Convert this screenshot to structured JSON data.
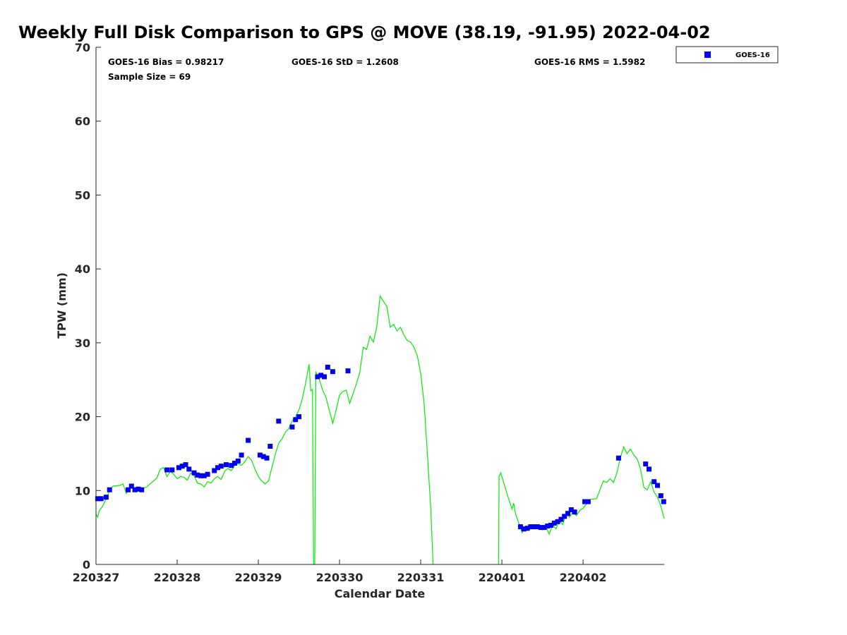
{
  "chart_data": {
    "type": "scatter",
    "title": "Weekly Full Disk Comparison to GPS @ MOVE (38.19, -91.95) 2022-04-02",
    "xlabel": "Calendar Date",
    "ylabel": "TPW (mm)",
    "xlim": [
      "2022-03-27T00:00",
      "2022-04-02T23:59"
    ],
    "ylim": [
      0,
      70
    ],
    "x_ticks": [
      {
        "date": "2022-03-27",
        "label": "220327"
      },
      {
        "date": "2022-03-28",
        "label": "220328"
      },
      {
        "date": "2022-03-29",
        "label": "220329"
      },
      {
        "date": "2022-03-30",
        "label": "220330"
      },
      {
        "date": "2022-03-31",
        "label": "220331"
      },
      {
        "date": "2022-04-01",
        "label": "220401"
      },
      {
        "date": "2022-04-02",
        "label": "220402"
      }
    ],
    "y_ticks": [
      0,
      10,
      20,
      30,
      40,
      50,
      60,
      70
    ],
    "grid": false,
    "legend_position": "top-right outside",
    "stats": {
      "bias": "GOES-16 Bias = 0.98217",
      "std": "GOES-16 StD = 1.2608",
      "rms": "GOES-16 RMS = 1.5982",
      "sample": "Sample Size = 69"
    },
    "series": [
      {
        "name": "GOES-16",
        "kind": "marker",
        "marker": "square",
        "color": "#0000ee",
        "points": [
          [
            "2022-03-27T00:30",
            8.9
          ],
          [
            "2022-03-27T01:30",
            8.9
          ],
          [
            "2022-03-27T03:00",
            9.1
          ],
          [
            "2022-03-27T04:00",
            10.1
          ],
          [
            "2022-03-27T09:30",
            10.1
          ],
          [
            "2022-03-27T10:30",
            10.6
          ],
          [
            "2022-03-27T11:30",
            10.1
          ],
          [
            "2022-03-27T12:30",
            10.2
          ],
          [
            "2022-03-27T13:30",
            10.1
          ],
          [
            "2022-03-27T21:00",
            12.8
          ],
          [
            "2022-03-27T22:30",
            12.8
          ],
          [
            "2022-03-28T00:30",
            13.1
          ],
          [
            "2022-03-28T01:30",
            13.3
          ],
          [
            "2022-03-28T02:30",
            13.5
          ],
          [
            "2022-03-28T03:30",
            12.9
          ],
          [
            "2022-03-28T05:00",
            12.4
          ],
          [
            "2022-03-28T06:00",
            12.1
          ],
          [
            "2022-03-28T07:00",
            12.0
          ],
          [
            "2022-03-28T08:00",
            12.0
          ],
          [
            "2022-03-28T09:00",
            12.2
          ],
          [
            "2022-03-28T11:00",
            12.7
          ],
          [
            "2022-03-28T12:00",
            13.1
          ],
          [
            "2022-03-28T13:00",
            13.3
          ],
          [
            "2022-03-28T14:30",
            13.5
          ],
          [
            "2022-03-28T16:00",
            13.4
          ],
          [
            "2022-03-28T17:00",
            13.7
          ],
          [
            "2022-03-28T18:00",
            14.0
          ],
          [
            "2022-03-28T19:00",
            14.8
          ],
          [
            "2022-03-28T21:00",
            16.8
          ],
          [
            "2022-03-29T00:30",
            14.8
          ],
          [
            "2022-03-29T01:30",
            14.6
          ],
          [
            "2022-03-29T02:30",
            14.4
          ],
          [
            "2022-03-29T03:30",
            16.0
          ],
          [
            "2022-03-29T06:00",
            19.4
          ],
          [
            "2022-03-29T10:00",
            18.6
          ],
          [
            "2022-03-29T11:00",
            19.6
          ],
          [
            "2022-03-29T12:00",
            20.0
          ],
          [
            "2022-03-29T17:30",
            25.4
          ],
          [
            "2022-03-29T18:30",
            25.6
          ],
          [
            "2022-03-29T19:30",
            25.4
          ],
          [
            "2022-03-29T20:30",
            26.7
          ],
          [
            "2022-03-29T22:00",
            26.1
          ],
          [
            "2022-03-30T02:30",
            26.2
          ],
          [
            "2022-04-01T05:30",
            5.1
          ],
          [
            "2022-04-01T06:30",
            4.8
          ],
          [
            "2022-04-01T07:30",
            4.9
          ],
          [
            "2022-04-01T08:30",
            5.1
          ],
          [
            "2022-04-01T09:30",
            5.1
          ],
          [
            "2022-04-01T10:30",
            5.1
          ],
          [
            "2022-04-01T11:30",
            5.0
          ],
          [
            "2022-04-01T12:30",
            5.0
          ],
          [
            "2022-04-01T13:30",
            5.2
          ],
          [
            "2022-04-01T14:30",
            5.3
          ],
          [
            "2022-04-01T15:30",
            5.6
          ],
          [
            "2022-04-01T16:30",
            5.8
          ],
          [
            "2022-04-01T17:30",
            6.1
          ],
          [
            "2022-04-01T18:30",
            6.5
          ],
          [
            "2022-04-01T19:30",
            6.9
          ],
          [
            "2022-04-01T20:30",
            7.4
          ],
          [
            "2022-04-01T21:30",
            7.1
          ],
          [
            "2022-04-02T00:30",
            8.5
          ],
          [
            "2022-04-02T01:30",
            8.5
          ],
          [
            "2022-04-02T10:30",
            14.4
          ],
          [
            "2022-04-02T18:30",
            13.6
          ],
          [
            "2022-04-02T19:30",
            12.9
          ],
          [
            "2022-04-02T21:00",
            11.2
          ],
          [
            "2022-04-02T22:00",
            10.7
          ],
          [
            "2022-04-02T23:00",
            9.3
          ],
          [
            "2022-04-02T23:50",
            8.5
          ]
        ]
      },
      {
        "kind": "line",
        "color": "#00ee00",
        "segments": [
          [
            [
              "2022-03-27T00:00",
              6.8
            ],
            [
              "2022-03-27T00:30",
              6.4
            ],
            [
              "2022-03-27T01:00",
              7.3
            ],
            [
              "2022-03-27T02:00",
              7.9
            ],
            [
              "2022-03-27T03:00",
              8.9
            ],
            [
              "2022-03-27T04:00",
              10.0
            ],
            [
              "2022-03-27T05:00",
              10.6
            ],
            [
              "2022-03-27T07:00",
              10.7
            ],
            [
              "2022-03-27T08:00",
              10.9
            ],
            [
              "2022-03-27T09:00",
              9.6
            ],
            [
              "2022-03-27T10:00",
              10.3
            ],
            [
              "2022-03-27T12:00",
              10.4
            ],
            [
              "2022-03-27T13:00",
              10.1
            ],
            [
              "2022-03-27T15:00",
              10.5
            ],
            [
              "2022-03-27T17:00",
              11.3
            ],
            [
              "2022-03-27T18:00",
              11.7
            ],
            [
              "2022-03-27T19:00",
              12.9
            ],
            [
              "2022-03-27T20:00",
              13.1
            ],
            [
              "2022-03-27T21:00",
              11.9
            ],
            [
              "2022-03-27T22:00",
              12.6
            ],
            [
              "2022-03-27T23:00",
              12.2
            ],
            [
              "2022-03-28T00:00",
              11.6
            ],
            [
              "2022-03-28T01:00",
              11.9
            ],
            [
              "2022-03-28T02:00",
              11.8
            ],
            [
              "2022-03-28T03:00",
              11.4
            ],
            [
              "2022-03-28T04:00",
              12.4
            ],
            [
              "2022-03-28T05:00",
              12.0
            ],
            [
              "2022-03-28T06:00",
              11.0
            ],
            [
              "2022-03-28T07:00",
              10.9
            ],
            [
              "2022-03-28T08:00",
              10.5
            ],
            [
              "2022-03-28T09:00",
              11.2
            ],
            [
              "2022-03-28T10:00",
              11.0
            ],
            [
              "2022-03-28T11:00",
              11.6
            ],
            [
              "2022-03-28T12:00",
              11.9
            ],
            [
              "2022-03-28T13:00",
              11.5
            ],
            [
              "2022-03-28T14:00",
              12.6
            ],
            [
              "2022-03-28T15:00",
              13.0
            ],
            [
              "2022-03-28T16:00",
              12.7
            ],
            [
              "2022-03-28T17:00",
              13.4
            ],
            [
              "2022-03-28T18:00",
              13.6
            ],
            [
              "2022-03-28T19:00",
              13.4
            ],
            [
              "2022-03-28T20:00",
              13.9
            ],
            [
              "2022-03-28T21:00",
              14.6
            ],
            [
              "2022-03-28T22:00",
              14.1
            ],
            [
              "2022-03-28T23:00",
              12.9
            ],
            [
              "2022-03-29T00:00",
              11.9
            ],
            [
              "2022-03-29T01:00",
              11.3
            ],
            [
              "2022-03-29T02:00",
              10.9
            ],
            [
              "2022-03-29T03:00",
              11.3
            ],
            [
              "2022-03-29T04:00",
              13.1
            ],
            [
              "2022-03-29T05:00",
              14.9
            ],
            [
              "2022-03-29T06:00",
              16.4
            ],
            [
              "2022-03-29T07:00",
              17.0
            ],
            [
              "2022-03-29T08:00",
              17.9
            ],
            [
              "2022-03-29T09:00",
              18.4
            ],
            [
              "2022-03-29T10:00",
              19.4
            ],
            [
              "2022-03-29T11:00",
              20.0
            ],
            [
              "2022-03-29T12:00",
              20.9
            ],
            [
              "2022-03-29T13:00",
              22.4
            ],
            [
              "2022-03-29T14:00",
              24.6
            ],
            [
              "2022-03-29T15:00",
              27.1
            ],
            [
              "2022-03-29T15:30",
              23.5
            ],
            [
              "2022-03-29T16:00",
              23.7
            ],
            [
              "2022-03-29T16:20",
              0
            ],
            [
              "2022-03-29T16:40",
              0
            ],
            [
              "2022-03-29T17:00",
              26.1
            ],
            [
              "2022-03-29T18:00",
              25.1
            ],
            [
              "2022-03-29T19:00",
              23.6
            ],
            [
              "2022-03-29T20:00",
              22.6
            ],
            [
              "2022-03-29T21:00",
              20.8
            ],
            [
              "2022-03-29T22:00",
              19.1
            ],
            [
              "2022-03-29T23:00",
              20.9
            ],
            [
              "2022-03-30T00:00",
              22.9
            ],
            [
              "2022-03-30T01:00",
              23.4
            ],
            [
              "2022-03-30T02:00",
              23.6
            ],
            [
              "2022-03-30T03:00",
              21.8
            ],
            [
              "2022-03-30T04:00",
              23.1
            ],
            [
              "2022-03-30T05:00",
              24.5
            ],
            [
              "2022-03-30T06:00",
              26.0
            ],
            [
              "2022-03-30T07:00",
              29.4
            ],
            [
              "2022-03-30T08:00",
              29.1
            ],
            [
              "2022-03-30T09:00",
              30.9
            ],
            [
              "2022-03-30T10:00",
              30.1
            ],
            [
              "2022-03-30T11:00",
              32.1
            ],
            [
              "2022-03-30T12:00",
              36.3
            ],
            [
              "2022-03-30T13:00",
              35.6
            ],
            [
              "2022-03-30T14:00",
              34.9
            ],
            [
              "2022-03-30T15:00",
              32.1
            ],
            [
              "2022-03-30T16:00",
              32.5
            ],
            [
              "2022-03-30T17:00",
              31.6
            ],
            [
              "2022-03-30T18:00",
              32.1
            ],
            [
              "2022-03-30T19:00",
              31.1
            ],
            [
              "2022-03-30T20:00",
              30.3
            ],
            [
              "2022-03-30T21:00",
              30.1
            ],
            [
              "2022-03-30T22:00",
              29.4
            ],
            [
              "2022-03-30T23:00",
              28.2
            ],
            [
              "2022-03-31T00:00",
              25.9
            ],
            [
              "2022-03-31T01:00",
              21.9
            ],
            [
              "2022-03-31T02:00",
              14.9
            ],
            [
              "2022-03-31T03:00",
              7.4
            ],
            [
              "2022-03-31T03:40",
              0
            ]
          ],
          [
            [
              "2022-03-31T23:00",
              0
            ],
            [
              "2022-03-31T23:10",
              11.9
            ],
            [
              "2022-03-31T23:40",
              12.4
            ],
            [
              "2022-04-01T00:30",
              11.1
            ],
            [
              "2022-04-01T01:30",
              9.6
            ],
            [
              "2022-04-01T02:30",
              8.2
            ],
            [
              "2022-04-01T03:00",
              7.5
            ],
            [
              "2022-04-01T03:30",
              8.3
            ],
            [
              "2022-04-01T04:00",
              6.9
            ],
            [
              "2022-04-01T05:00",
              5.6
            ],
            [
              "2022-04-01T06:00",
              4.3
            ],
            [
              "2022-04-01T07:00",
              5.1
            ],
            [
              "2022-04-01T08:00",
              4.6
            ],
            [
              "2022-04-01T09:00",
              5.2
            ],
            [
              "2022-04-01T10:00",
              4.9
            ],
            [
              "2022-04-01T11:00",
              5.3
            ],
            [
              "2022-04-01T12:00",
              4.7
            ],
            [
              "2022-04-01T13:00",
              5.1
            ],
            [
              "2022-04-01T14:00",
              4.1
            ],
            [
              "2022-04-01T15:00",
              5.4
            ],
            [
              "2022-04-01T16:00",
              4.8
            ],
            [
              "2022-04-01T17:00",
              5.9
            ],
            [
              "2022-04-01T18:00",
              5.4
            ],
            [
              "2022-04-01T19:00",
              6.9
            ],
            [
              "2022-04-01T20:00",
              6.4
            ],
            [
              "2022-04-01T21:00",
              7.1
            ],
            [
              "2022-04-01T22:00",
              6.6
            ],
            [
              "2022-04-01T23:00",
              7.3
            ],
            [
              "2022-04-02T00:00",
              7.6
            ],
            [
              "2022-04-02T01:00",
              8.2
            ],
            [
              "2022-04-02T02:00",
              8.8
            ],
            [
              "2022-04-02T04:00",
              8.9
            ],
            [
              "2022-04-02T05:00",
              10.1
            ],
            [
              "2022-04-02T06:00",
              11.3
            ],
            [
              "2022-04-02T07:00",
              11.1
            ],
            [
              "2022-04-02T08:00",
              11.6
            ],
            [
              "2022-04-02T09:00",
              11.1
            ],
            [
              "2022-04-02T10:00",
              12.4
            ],
            [
              "2022-04-02T11:00",
              14.4
            ],
            [
              "2022-04-02T12:00",
              15.9
            ],
            [
              "2022-04-02T13:00",
              15.0
            ],
            [
              "2022-04-02T14:00",
              15.6
            ],
            [
              "2022-04-02T15:00",
              14.8
            ],
            [
              "2022-04-02T16:00",
              14.3
            ],
            [
              "2022-04-02T17:00",
              12.9
            ],
            [
              "2022-04-02T18:00",
              10.4
            ],
            [
              "2022-04-02T19:00",
              10.1
            ],
            [
              "2022-04-02T20:00",
              11.2
            ],
            [
              "2022-04-02T21:00",
              9.8
            ],
            [
              "2022-04-02T22:00",
              9.1
            ],
            [
              "2022-04-02T23:00",
              7.9
            ],
            [
              "2022-04-02T23:59",
              6.2
            ]
          ]
        ]
      }
    ]
  }
}
